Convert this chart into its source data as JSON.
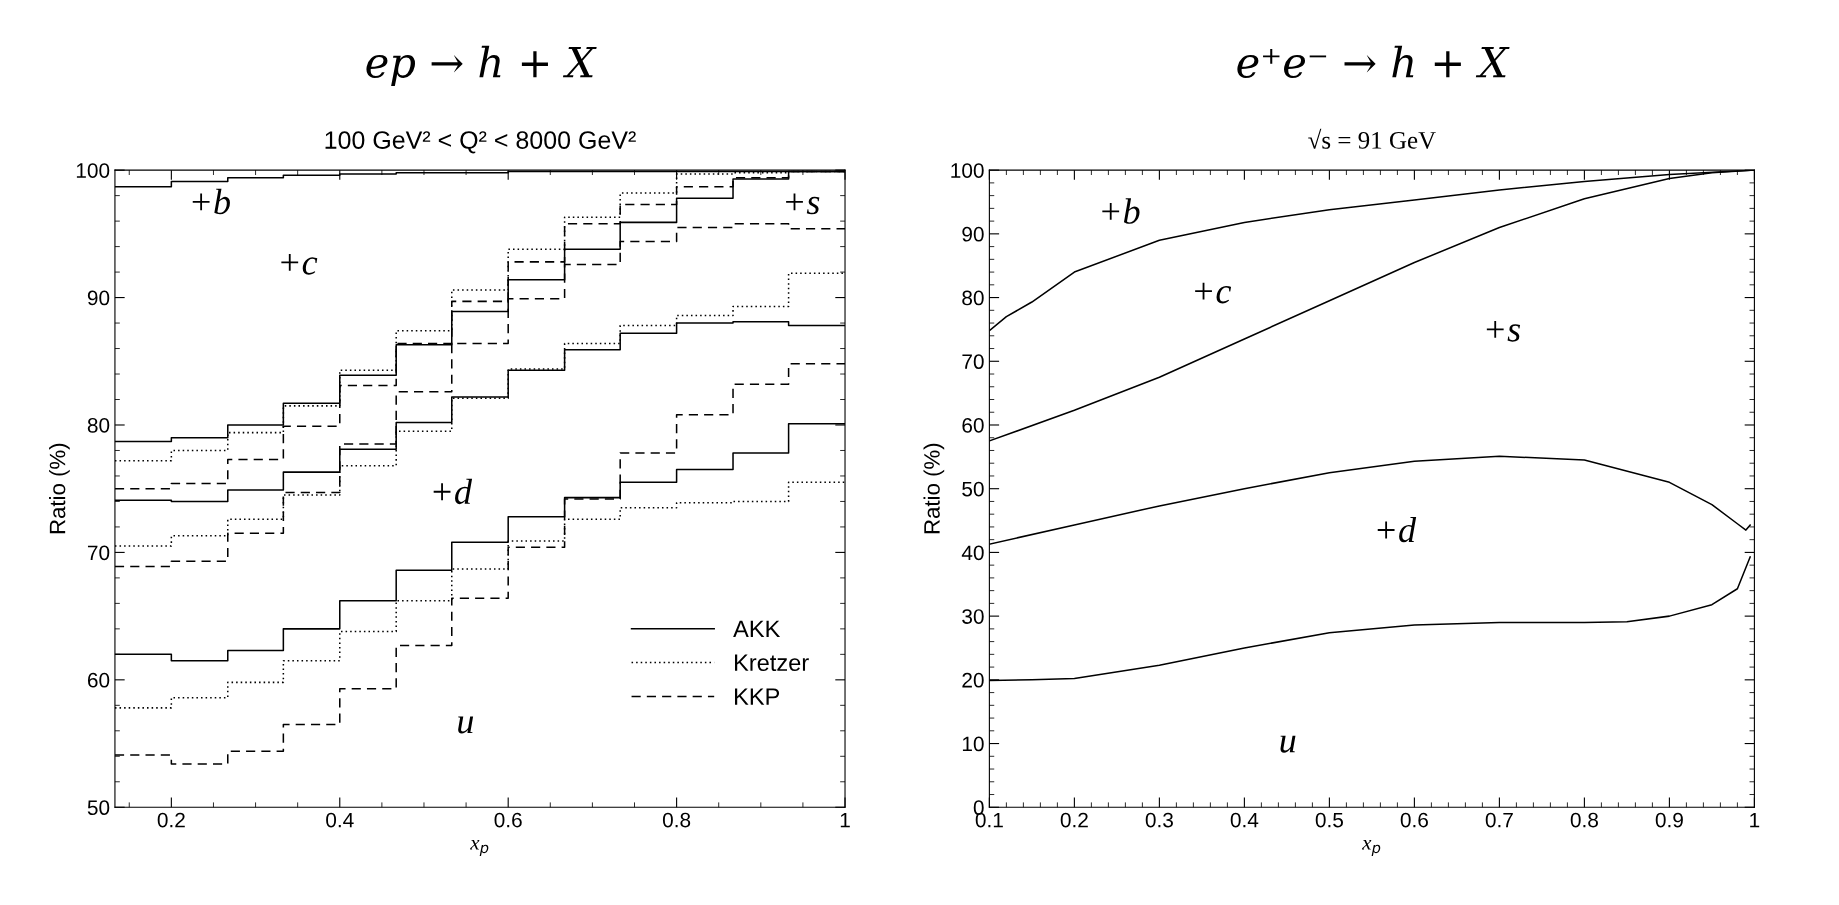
{
  "chart_data": [
    {
      "type": "step",
      "title": "ep → h + X",
      "subtitle": "100 GeV² < Q² < 8000 GeV²",
      "xlabel": "x$_{p}$",
      "ylabel": "Ratio (%)",
      "x": [
        0.133,
        0.2,
        0.267,
        0.333,
        0.4,
        0.467,
        0.533,
        0.6,
        0.667,
        0.733,
        0.8,
        0.867,
        0.933,
        1.0
      ],
      "xlim": [
        0.133,
        1
      ],
      "xticks": [
        0.2,
        0.4,
        0.6,
        0.8,
        {
          "value": 1,
          "label": "1"
        }
      ],
      "ylim": [
        50,
        100
      ],
      "yticks": [
        50,
        60,
        70,
        80,
        90,
        100
      ],
      "legend": "lower right",
      "grid": false,
      "series": [
        {
          "name": "AKK",
          "color": "#000000",
          "line_style": "solid",
          "values": [
            62.0,
            61.5,
            62.3,
            64.0,
            66.2,
            68.6,
            70.8,
            72.8,
            74.3,
            75.5,
            76.5,
            77.8,
            80.1,
            80.1
          ]
        },
        {
          "name": "Kretzer",
          "color": "#000000",
          "line_style": "dotted",
          "values": [
            57.8,
            58.6,
            59.8,
            61.5,
            63.8,
            66.2,
            68.7,
            70.9,
            72.6,
            73.5,
            73.9,
            74.0,
            75.5,
            75.5
          ]
        },
        {
          "name": "KKP",
          "color": "#000000",
          "line_style": "dashed",
          "values": [
            54.1,
            53.4,
            54.4,
            56.5,
            59.3,
            62.7,
            66.4,
            70.4,
            74.2,
            77.8,
            80.8,
            83.2,
            84.8,
            84.8
          ]
        },
        {
          "color": "#000000",
          "line_style": "solid",
          "values": [
            74.1,
            74.0,
            74.9,
            76.3,
            78.1,
            80.2,
            82.2,
            84.3,
            85.9,
            87.2,
            88.0,
            88.1,
            87.8,
            87.8
          ]
        },
        {
          "color": "#000000",
          "line_style": "dotted",
          "values": [
            70.5,
            71.3,
            72.6,
            74.5,
            76.8,
            79.5,
            82.1,
            84.4,
            86.4,
            87.8,
            88.6,
            89.3,
            91.9,
            91.9
          ]
        },
        {
          "color": "#000000",
          "line_style": "dashed",
          "values": [
            68.9,
            69.3,
            71.5,
            74.7,
            78.5,
            82.6,
            86.4,
            89.9,
            92.6,
            94.4,
            95.5,
            95.8,
            95.4,
            95.4
          ]
        },
        {
          "color": "#000000",
          "line_style": "solid",
          "values": [
            78.7,
            79.0,
            80.0,
            81.7,
            83.9,
            86.3,
            88.9,
            91.4,
            93.8,
            95.9,
            97.8,
            99.3,
            99.9,
            99.9
          ]
        },
        {
          "color": "#000000",
          "line_style": "dotted",
          "values": [
            77.2,
            78.0,
            79.4,
            81.5,
            84.3,
            87.4,
            90.6,
            93.8,
            96.3,
            98.2,
            99.7,
            99.8,
            99.9,
            99.9
          ]
        },
        {
          "color": "#000000",
          "line_style": "dashed",
          "values": [
            75.0,
            75.4,
            77.3,
            79.9,
            83.1,
            86.4,
            89.7,
            92.8,
            95.8,
            97.3,
            98.7,
            99.4,
            99.9,
            99.9
          ]
        },
        {
          "color": "#000000",
          "line_style": "solid",
          "values": [
            98.7,
            99.1,
            99.4,
            99.6,
            99.7,
            99.8,
            99.8,
            99.9,
            99.9,
            99.9,
            99.9,
            99.9,
            99.9,
            99.9
          ]
        }
      ],
      "annotations": [
        "+b",
        "+c",
        "+s",
        "+d",
        "u"
      ]
    },
    {
      "type": "line",
      "title": "e⁺e⁻ → h + X",
      "subtitle": "√s = 91 GeV",
      "xlabel": "x$_{p}$",
      "ylabel": "Ratio (%)",
      "xlim": [
        0.1,
        1
      ],
      "xticks": [
        0.1,
        0.2,
        0.3,
        0.4,
        0.5,
        0.6,
        0.7,
        0.8,
        0.9,
        {
          "value": 1,
          "label": "1"
        }
      ],
      "ylim": [
        0,
        100
      ],
      "yticks": [
        0,
        10,
        20,
        30,
        40,
        50,
        60,
        70,
        80,
        90,
        100
      ],
      "grid": false,
      "series": [
        {
          "color": "#000000",
          "line_style": "solid",
          "x": [
            0.1,
            0.15,
            0.2,
            0.3,
            0.4,
            0.5,
            0.6,
            0.7,
            0.8,
            0.85,
            0.9,
            0.95,
            0.98,
            0.995
          ],
          "values": [
            19.9,
            20.0,
            20.2,
            22.3,
            25.0,
            27.4,
            28.6,
            29.0,
            29.0,
            29.1,
            30.0,
            31.8,
            34.3,
            39.3
          ]
        },
        {
          "color": "#000000",
          "line_style": "solid",
          "x": [
            0.1,
            0.2,
            0.3,
            0.4,
            0.5,
            0.6,
            0.7,
            0.8,
            0.9,
            0.95,
            0.98,
            0.99,
            0.995
          ],
          "values": [
            41.3,
            44.3,
            47.3,
            50.0,
            52.5,
            54.3,
            55.1,
            54.5,
            51.0,
            47.5,
            44.5,
            43.5,
            44.3
          ]
        },
        {
          "color": "#000000",
          "line_style": "solid",
          "x": [
            0.1,
            0.2,
            0.3,
            0.4,
            0.5,
            0.6,
            0.7,
            0.8,
            0.9,
            0.95,
            1.0
          ],
          "values": [
            57.5,
            62.3,
            67.5,
            73.5,
            79.5,
            85.5,
            91.0,
            95.5,
            98.7,
            99.6,
            100.0
          ]
        },
        {
          "color": "#000000",
          "line_style": "solid",
          "x": [
            0.1,
            0.12,
            0.15,
            0.2,
            0.3,
            0.4,
            0.5,
            0.6,
            0.7,
            0.8,
            0.9,
            1.0
          ],
          "values": [
            74.8,
            77.0,
            79.3,
            84.0,
            89.0,
            91.8,
            93.8,
            95.3,
            96.9,
            98.2,
            99.3,
            100.0
          ]
        }
      ],
      "annotations": [
        "+b",
        "+c",
        "+s",
        "+d",
        "u"
      ]
    }
  ]
}
